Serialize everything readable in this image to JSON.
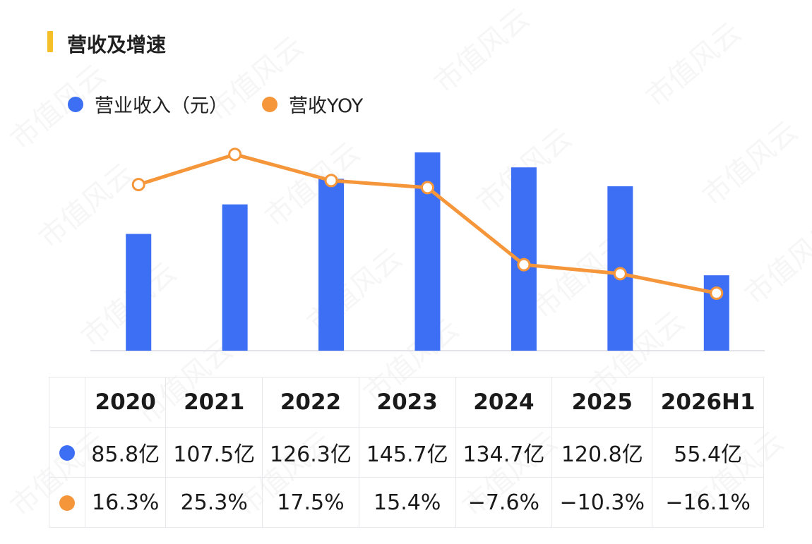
{
  "header": {
    "title": "营收及增速"
  },
  "legend": {
    "items": [
      {
        "label": "营业收入（元）",
        "color": "#3d6ff5"
      },
      {
        "label": "营收YOY",
        "color": "#f5963b"
      }
    ]
  },
  "chart_data": {
    "type": "bar",
    "categories": [
      "2020",
      "2021",
      "2022",
      "2023",
      "2024",
      "2025",
      "2026H1"
    ],
    "series": [
      {
        "name": "营业收入（元）",
        "type": "bar",
        "color": "#3d6ff5",
        "values": [
          85.8,
          107.5,
          126.3,
          145.7,
          134.7,
          120.8,
          55.4
        ]
      },
      {
        "name": "营收YOY",
        "type": "line",
        "color": "#f5963b",
        "values": [
          16.3,
          25.3,
          17.5,
          15.4,
          -7.6,
          -10.3,
          -16.1
        ]
      }
    ],
    "grid": false,
    "legend_position": "top-left"
  },
  "table": {
    "headers": [
      "2020",
      "2021",
      "2022",
      "2023",
      "2024",
      "2025",
      "2026H1"
    ],
    "revenue_row": [
      "85.8亿",
      "107.5亿",
      "126.3亿",
      "145.7亿",
      "134.7亿",
      "120.8亿",
      "55.4亿"
    ],
    "yoy_row": [
      "16.3%",
      "25.3%",
      "17.5%",
      "15.4%",
      "−7.6%",
      "−10.3%",
      "−16.1%"
    ]
  },
  "watermark": "市值风云"
}
